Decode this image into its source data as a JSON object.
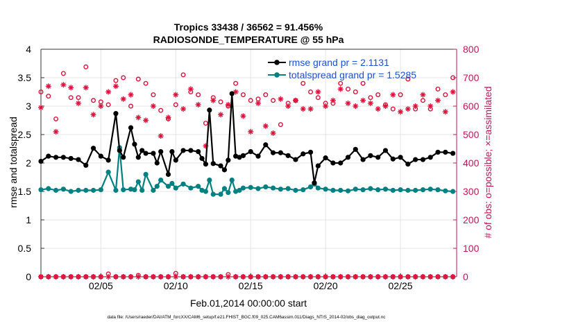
{
  "chart_data": {
    "type": "line",
    "title": "Tropics 33438 / 36562 = 91.456%",
    "subtitle": "RADIOSONDE_TEMPERATURE @ 55 hPa",
    "xlabel": "Feb.01,2014 00:00:00 start",
    "ylabel_left": "rmse and totalspread",
    "ylabel_right": "# of obs: o=possible; ×=assimilated",
    "footnote": "data file: /Users/raeder/DAI/ATM_forcXX/CAM6_setup/f.e21.FHIST_BGC.f09_025.CAM6assim.011/Diags_NTrS_2014-02/obs_diag_output.nc",
    "xlim": [
      1,
      28.75
    ],
    "ylim_left": [
      0,
      4
    ],
    "ylim_right": [
      0,
      800
    ],
    "x_ticks": [
      5,
      10,
      15,
      20,
      25
    ],
    "x_tick_labels": [
      "02/05",
      "02/10",
      "02/15",
      "02/20",
      "02/25"
    ],
    "y_left_ticks": [
      0,
      0.5,
      1,
      1.5,
      2,
      2.5,
      3,
      3.5,
      4
    ],
    "y_left_tick_labels": [
      "0",
      "0.5",
      "1",
      "1.5",
      "2",
      "2.5",
      "3",
      "3.5",
      "4"
    ],
    "y_right_ticks": [
      0,
      100,
      200,
      300,
      400,
      500,
      600,
      700,
      800
    ],
    "y_right_tick_labels": [
      "0",
      "100",
      "200",
      "300",
      "400",
      "500",
      "600",
      "700",
      "800"
    ],
    "colors": {
      "rmse": "#000000",
      "spread": "#008080",
      "obs": "#dc143c",
      "right_axis": "#c8105a",
      "legend_text": "#1a4fd8"
    },
    "series": [
      {
        "name": "rmse grand pr = 2.1131",
        "axis": "left",
        "x": [
          1.0,
          1.5,
          2.0,
          2.5,
          3.0,
          3.5,
          4.0,
          4.5,
          5.0,
          5.5,
          6.0,
          6.25,
          6.5,
          7.0,
          7.25,
          7.5,
          7.75,
          8.0,
          8.5,
          8.75,
          9.0,
          9.5,
          9.75,
          10.0,
          10.5,
          11.0,
          11.5,
          11.75,
          12.0,
          12.25,
          12.5,
          13.0,
          13.25,
          13.5,
          13.75,
          14.0,
          14.25,
          14.5,
          15.0,
          15.5,
          16.0,
          16.5,
          17.0,
          17.5,
          18.0,
          18.5,
          19.0,
          19.25,
          19.5,
          20.0,
          20.5,
          21.0,
          21.5,
          22.0,
          22.5,
          23.0,
          23.5,
          24.0,
          24.5,
          25.0,
          25.5,
          26.0,
          26.5,
          27.0,
          27.5,
          28.0,
          28.5
        ],
        "y": [
          2.03,
          2.12,
          2.1,
          2.1,
          2.08,
          2.06,
          1.96,
          2.26,
          2.12,
          2.05,
          2.87,
          2.22,
          2.1,
          2.62,
          2.33,
          2.1,
          2.22,
          2.17,
          2.17,
          2.0,
          2.2,
          1.8,
          2.2,
          2.05,
          2.22,
          2.22,
          2.2,
          2.08,
          1.98,
          2.93,
          1.99,
          1.95,
          1.88,
          2.05,
          3.22,
          2.12,
          2.1,
          2.13,
          2.2,
          2.12,
          2.32,
          2.18,
          2.18,
          2.13,
          2.06,
          2.16,
          2.19,
          1.65,
          1.95,
          2.09,
          2.0,
          2.0,
          2.1,
          2.24,
          2.06,
          2.13,
          2.1,
          2.22,
          2.07,
          2.1,
          1.98,
          2.06,
          2.06,
          2.1,
          2.19,
          2.19,
          2.17
        ]
      },
      {
        "name": "totalspread grand pr = 1.5285",
        "axis": "left",
        "x": [
          1.0,
          1.5,
          2.0,
          2.5,
          3.0,
          3.5,
          4.0,
          4.5,
          5.0,
          5.5,
          6.0,
          6.25,
          6.5,
          7.0,
          7.25,
          7.5,
          7.75,
          8.0,
          8.5,
          8.75,
          9.0,
          9.5,
          9.75,
          10.0,
          10.5,
          11.0,
          11.5,
          11.75,
          12.0,
          12.25,
          12.5,
          13.0,
          13.25,
          13.5,
          13.75,
          14.0,
          14.25,
          14.5,
          15.0,
          15.5,
          16.0,
          16.5,
          17.0,
          17.5,
          18.0,
          18.5,
          19.0,
          19.25,
          19.5,
          20.0,
          20.5,
          21.0,
          21.5,
          22.0,
          22.5,
          23.0,
          23.5,
          24.0,
          24.5,
          25.0,
          25.5,
          26.0,
          26.5,
          27.0,
          27.5,
          28.0,
          28.5
        ],
        "y": [
          1.53,
          1.55,
          1.52,
          1.54,
          1.5,
          1.52,
          1.52,
          1.52,
          1.53,
          1.84,
          1.52,
          2.27,
          1.53,
          1.54,
          1.53,
          1.67,
          1.52,
          1.8,
          1.52,
          1.59,
          1.7,
          1.59,
          1.64,
          1.56,
          1.63,
          1.56,
          1.59,
          1.52,
          1.5,
          1.7,
          1.45,
          1.45,
          1.55,
          1.48,
          1.7,
          1.5,
          1.52,
          1.56,
          1.57,
          1.55,
          1.58,
          1.56,
          1.54,
          1.55,
          1.52,
          1.53,
          1.58,
          1.63,
          1.56,
          1.54,
          1.52,
          1.52,
          1.51,
          1.54,
          1.53,
          1.55,
          1.53,
          1.54,
          1.52,
          1.53,
          1.52,
          1.52,
          1.53,
          1.54,
          1.53,
          1.51,
          1.5
        ]
      },
      {
        "name": "possible",
        "axis": "right",
        "marker": "o",
        "x": [
          1.0,
          1.5,
          2.0,
          2.5,
          3.0,
          3.5,
          4.0,
          4.5,
          5.0,
          5.5,
          6.0,
          6.5,
          7.0,
          7.5,
          8.0,
          8.5,
          9.0,
          9.5,
          10.0,
          10.5,
          11.0,
          11.5,
          12.0,
          12.5,
          13.0,
          13.5,
          14.0,
          14.5,
          15.0,
          15.5,
          16.0,
          16.5,
          17.0,
          17.5,
          18.0,
          18.5,
          19.0,
          19.5,
          20.0,
          20.5,
          21.0,
          21.5,
          22.0,
          22.5,
          23.0,
          23.5,
          24.0,
          24.5,
          25.0,
          25.5,
          26.0,
          26.5,
          27.0,
          27.5,
          28.0,
          28.5
        ],
        "y": [
          650,
          635,
          555,
          715,
          630,
          630,
          738,
          620,
          615,
          605,
          690,
          700,
          600,
          695,
          680,
          640,
          585,
          555,
          605,
          710,
          650,
          640,
          540,
          630,
          615,
          600,
          680,
          640,
          620,
          625,
          640,
          620,
          535,
          610,
          620,
          680,
          650,
          630,
          610,
          610,
          680,
          660,
          650,
          680,
          630,
          640,
          605,
          590,
          640,
          695,
          590,
          620,
          590,
          660,
          640,
          700
        ]
      },
      {
        "name": "assimilated",
        "axis": "right",
        "marker": "x",
        "x": [
          1.0,
          1.5,
          2.0,
          2.5,
          3.0,
          3.5,
          4.0,
          4.5,
          5.0,
          5.5,
          6.0,
          6.5,
          7.0,
          7.5,
          8.0,
          8.5,
          9.0,
          9.5,
          10.0,
          10.5,
          11.0,
          11.5,
          12.0,
          12.5,
          13.0,
          13.5,
          14.0,
          14.5,
          15.0,
          15.5,
          16.0,
          16.5,
          17.0,
          17.5,
          18.0,
          18.5,
          19.0,
          19.5,
          20.0,
          20.5,
          21.0,
          21.5,
          22.0,
          22.5,
          23.0,
          23.5,
          24.0,
          24.5,
          25.0,
          25.5,
          26.0,
          26.5,
          27.0,
          27.5,
          28.0,
          28.5
        ],
        "y": [
          595,
          670,
          510,
          675,
          665,
          610,
          665,
          570,
          600,
          650,
          670,
          625,
          640,
          560,
          550,
          600,
          495,
          560,
          640,
          590,
          660,
          605,
          460,
          620,
          570,
          605,
          650,
          565,
          510,
          610,
          530,
          505,
          625,
          600,
          620,
          590,
          590,
          650,
          600,
          620,
          660,
          610,
          600,
          620,
          610,
          590,
          600,
          640,
          580,
          590,
          600,
          640,
          600,
          620,
          580,
          650
        ]
      }
    ],
    "zero_rows": {
      "possible_x": [
        1.0,
        1.5,
        2.0,
        2.5,
        3.0,
        3.5,
        4.0,
        4.5,
        5.0,
        5.5,
        6.0,
        6.5,
        7.0,
        7.5,
        8.0,
        8.5,
        9.0,
        9.5,
        10.0,
        10.5,
        11.0,
        11.5,
        12.0,
        12.5,
        13.0,
        13.5,
        14.0,
        14.5,
        15.0,
        15.5,
        16.0,
        16.5,
        17.0,
        17.5,
        18.0,
        18.5,
        19.0,
        19.5,
        20.0,
        20.5,
        21.0,
        21.5,
        22.0,
        22.5,
        23.0,
        23.5,
        24.0,
        24.5,
        25.0,
        25.5,
        26.0,
        26.5,
        27.0,
        27.5,
        28.0,
        28.5
      ],
      "possible_y": [
        0,
        0,
        0,
        0,
        0,
        0,
        0,
        0,
        0,
        10,
        0,
        0,
        0,
        5,
        0,
        0,
        0,
        0,
        12,
        0,
        0,
        0,
        0,
        0,
        0,
        8,
        0,
        0,
        0,
        0,
        0,
        0,
        0,
        0,
        0,
        0,
        0,
        0,
        0,
        0,
        0,
        0,
        0,
        0,
        0,
        0,
        0,
        0,
        0,
        0,
        0,
        0,
        0,
        0,
        0,
        0
      ],
      "assimilated_x": [
        1.0,
        1.5,
        2.0,
        2.5,
        3.0,
        3.5,
        4.0,
        4.5,
        5.0,
        5.5,
        6.0,
        6.5,
        7.0,
        7.5,
        8.0,
        8.5,
        9.0,
        9.5,
        10.0,
        10.5,
        11.0,
        11.5,
        12.0,
        12.5,
        13.0,
        13.5,
        14.0,
        14.5,
        15.0,
        15.5,
        16.0,
        16.5,
        17.0,
        17.5,
        18.0,
        18.5,
        19.0,
        19.5,
        20.0,
        20.5,
        21.0,
        21.5,
        22.0,
        22.5,
        23.0,
        23.5,
        24.0,
        24.5,
        25.0,
        25.5,
        26.0,
        26.5,
        27.0,
        27.5,
        28.0,
        28.5
      ],
      "assimilated_y": [
        0,
        0,
        0,
        0,
        0,
        0,
        0,
        0,
        0,
        0,
        0,
        0,
        0,
        0,
        0,
        0,
        0,
        0,
        0,
        0,
        0,
        0,
        0,
        0,
        0,
        0,
        0,
        0,
        0,
        0,
        0,
        0,
        0,
        0,
        0,
        0,
        0,
        0,
        0,
        0,
        0,
        0,
        0,
        0,
        0,
        0,
        0,
        0,
        0,
        0,
        0,
        0,
        0,
        0,
        0,
        0
      ]
    }
  }
}
